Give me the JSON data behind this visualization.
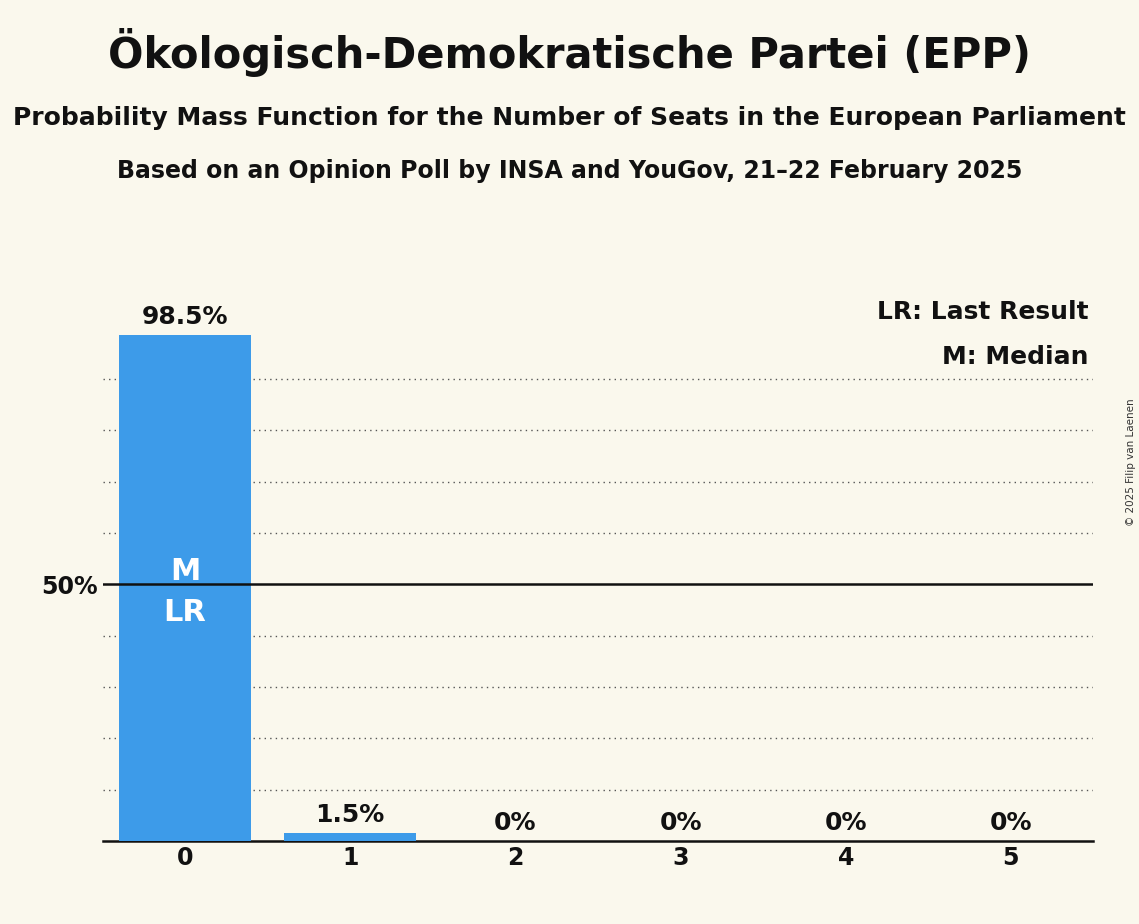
{
  "title": "Ökologisch-Demokratische Partei (EPP)",
  "subtitle1": "Probability Mass Function for the Number of Seats in the European Parliament",
  "subtitle2": "Based on an Opinion Poll by INSA and YouGov, 21–22 February 2025",
  "copyright": "© 2025 Filip van Laenen",
  "categories": [
    0,
    1,
    2,
    3,
    4,
    5
  ],
  "values": [
    0.985,
    0.015,
    0.0,
    0.0,
    0.0,
    0.0
  ],
  "bar_color": "#3d9be9",
  "background_color": "#faf8ed",
  "median": 0,
  "last_result": 0,
  "fifty_pct_line": 0.5,
  "legend_lr": "LR: Last Result",
  "legend_m": "M: Median",
  "ylabel_50": "50%",
  "title_fontsize": 30,
  "subtitle1_fontsize": 18,
  "subtitle2_fontsize": 17,
  "tick_fontsize": 17,
  "label_fontsize": 18,
  "ml_fontsize": 22
}
